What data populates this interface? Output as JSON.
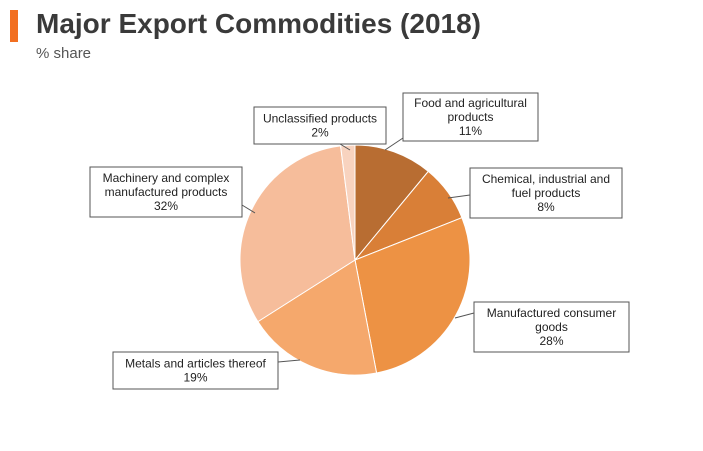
{
  "header": {
    "title": "Major Export Commodities (2018)",
    "subtitle": "% share",
    "accent_color": "#f26f21"
  },
  "chart_data": {
    "type": "pie",
    "title": "Major Export Commodities (2018)",
    "subtitle": "% share",
    "start_angle_deg": 0,
    "direction": "clockwise",
    "slices": [
      {
        "label": "Food and agricultural products",
        "label_lines": [
          "Food and agricultural",
          "products",
          "11%"
        ],
        "value": 11,
        "color": "#b86d32"
      },
      {
        "label": "Chemical, industrial and fuel products",
        "label_lines": [
          "Chemical, industrial and",
          "fuel products",
          "8%"
        ],
        "value": 8,
        "color": "#d97f37"
      },
      {
        "label": "Manufactured consumer goods",
        "label_lines": [
          "Manufactured consumer",
          "goods",
          "28%"
        ],
        "value": 28,
        "color": "#ed9244"
      },
      {
        "label": "Metals and articles thereof",
        "label_lines": [
          "Metals and articles thereof",
          "19%"
        ],
        "value": 19,
        "color": "#f5a86c"
      },
      {
        "label": "Machinery and complex manufactured products",
        "label_lines": [
          "Machinery and complex",
          "manufactured products",
          "32%"
        ],
        "value": 32,
        "color": "#f6bd9b"
      },
      {
        "label": "Unclassified products",
        "label_lines": [
          "Unclassified products",
          "2%"
        ],
        "value": 2,
        "color": "#f8d3bf"
      }
    ]
  }
}
